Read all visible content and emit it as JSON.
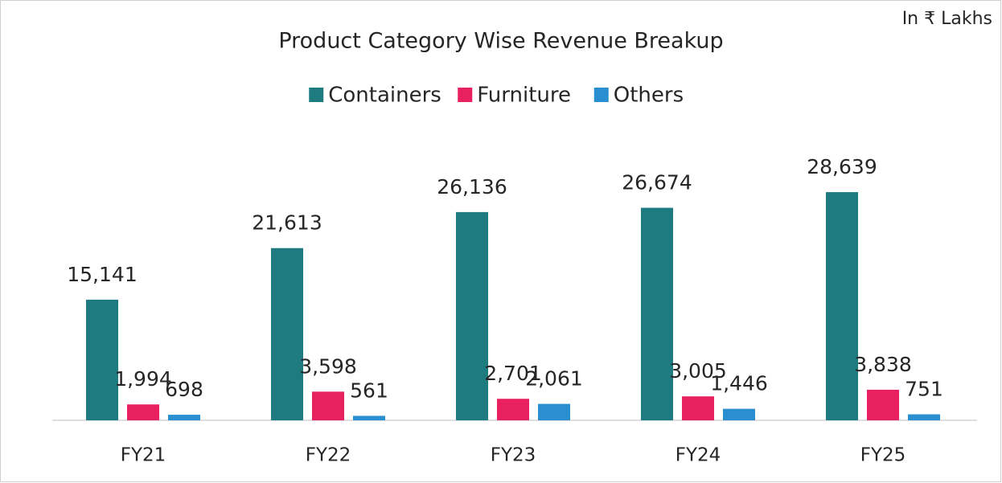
{
  "chart_data": {
    "type": "bar",
    "title": "Product Category Wise Revenue Breakup",
    "annotation": "In ₹ Lakhs",
    "categories": [
      "FY21",
      "FY22",
      "FY23",
      "FY24",
      "FY25"
    ],
    "series": [
      {
        "name": "Containers",
        "color": "#1e7b80",
        "values": [
          15141,
          21613,
          26136,
          26674,
          28639
        ],
        "value_labels": [
          "15,141",
          "21,613",
          "26,136",
          "26,674",
          "28,639"
        ]
      },
      {
        "name": "Furniture",
        "color": "#e8205f",
        "values": [
          1994,
          3598,
          2701,
          3005,
          3838
        ],
        "value_labels": [
          "1,994",
          "3,598",
          "2,701",
          "3,005",
          "3,838"
        ]
      },
      {
        "name": "Others",
        "color": "#2a8fd0",
        "values": [
          698,
          561,
          2061,
          1446,
          751
        ],
        "value_labels": [
          "698",
          "561",
          "2,061",
          "1,446",
          "751"
        ]
      }
    ],
    "ylim": [
      0,
      35000
    ],
    "legend": "top"
  }
}
